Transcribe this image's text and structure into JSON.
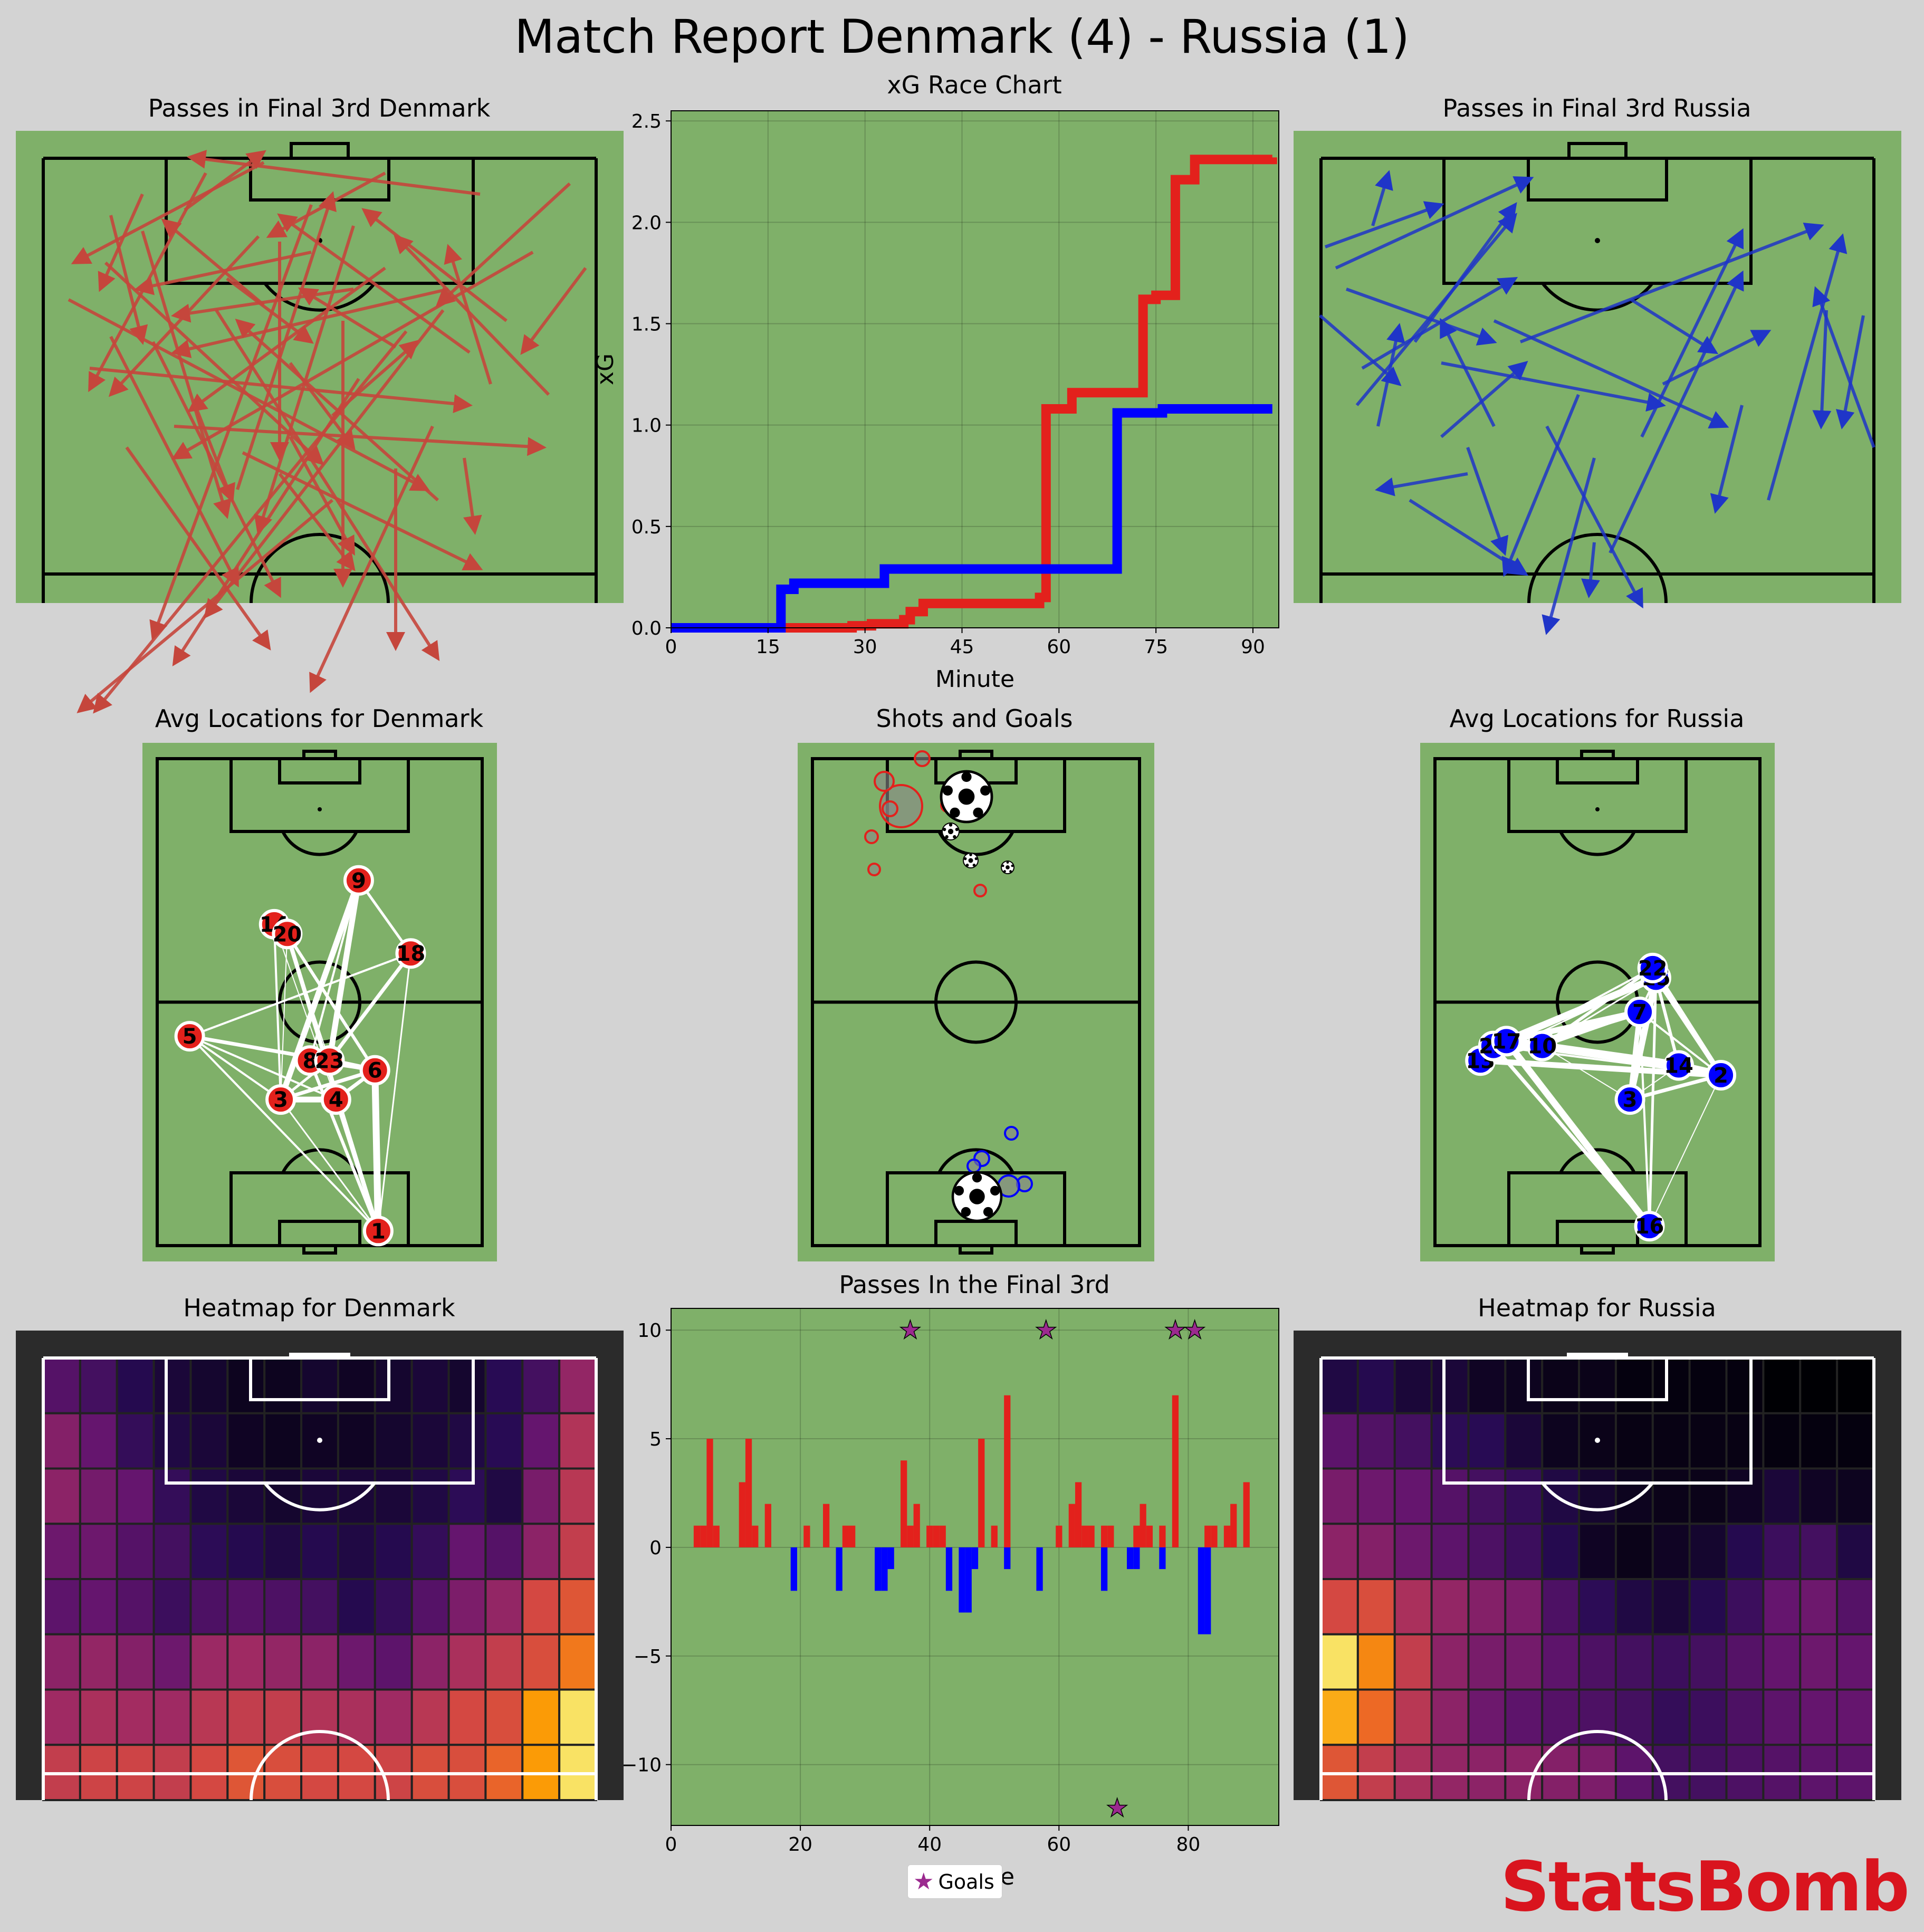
{
  "title": "Match Report Denmark (4) - Russia (1)",
  "brand": "StatsBomb",
  "colors": {
    "denmark": "#e3211c",
    "russia": "#0000ff",
    "pitch": "#7fb069",
    "background": "#d3d3d3",
    "goal_star": "#9b2a8f"
  },
  "panels": {
    "passes_dk_title": "Passes in Final 3rd Denmark",
    "xg_title": "xG Race Chart",
    "passes_ru_title": "Passes in Final 3rd Russia",
    "avg_dk_title": "Avg Locations for Denmark",
    "shots_title": "Shots and Goals",
    "avg_ru_title": "Avg Locations for Russia",
    "heat_dk_title": "Heatmap for Denmark",
    "final3rd_title": "Passes In the Final 3rd",
    "heat_ru_title": "Heatmap for Russia"
  },
  "legend": {
    "goals": "Goals"
  },
  "chart_data": [
    {
      "type": "line",
      "title": "xG Race Chart",
      "xlabel": "Minute",
      "ylabel": "xG",
      "xlim": [
        0,
        94
      ],
      "ylim": [
        0,
        2.55
      ],
      "xticks": [
        0,
        15,
        30,
        45,
        60,
        75,
        90
      ],
      "yticks": [
        0.0,
        0.5,
        1.0,
        1.5,
        2.0,
        2.5
      ],
      "grid": true,
      "step": true,
      "series": [
        {
          "team": "Denmark",
          "color": "#e3211c",
          "points": [
            [
              19,
              0
            ],
            [
              28,
              0.01
            ],
            [
              31,
              0.02
            ],
            [
              36,
              0.04
            ],
            [
              37,
              0.08
            ],
            [
              39,
              0.12
            ],
            [
              57,
              0.15
            ],
            [
              58,
              1.08
            ],
            [
              62,
              1.16
            ],
            [
              73,
              1.62
            ],
            [
              75,
              1.64
            ],
            [
              78,
              2.21
            ],
            [
              81,
              2.31
            ],
            [
              93,
              2.32
            ]
          ]
        },
        {
          "team": "Russia",
          "color": "#0000ff",
          "points": [
            [
              0,
              0
            ],
            [
              17,
              0.19
            ],
            [
              19,
              0.22
            ],
            [
              33,
              0.29
            ],
            [
              69,
              0.29
            ],
            [
              69,
              1.06
            ],
            [
              76,
              1.08
            ],
            [
              93,
              1.08
            ]
          ]
        }
      ]
    },
    {
      "type": "bar",
      "title": "Passes In the Final 3rd",
      "xlabel": "Minute",
      "xlim": [
        0,
        94
      ],
      "ylim": [
        -12.8,
        11
      ],
      "xticks": [
        0,
        20,
        40,
        60,
        80
      ],
      "yticks": [
        10,
        5,
        0,
        -5,
        -10
      ],
      "ytick_labels": [
        "10",
        "5",
        "0",
        "−5",
        "−10"
      ],
      "grid": true,
      "series": [
        {
          "team": "Denmark",
          "color": "#e3211c",
          "minutes": [
            4,
            5,
            6,
            7,
            11,
            12,
            13,
            15,
            21,
            24,
            27,
            28,
            36,
            37,
            38,
            40,
            41,
            42,
            48,
            50,
            52,
            60,
            62,
            63,
            64,
            65,
            67,
            68,
            72,
            73,
            74,
            76,
            78,
            83,
            84,
            86,
            87,
            89
          ],
          "values": [
            1,
            1,
            5,
            1,
            3,
            5,
            1,
            2,
            1,
            2,
            1,
            1,
            4,
            1,
            2,
            1,
            1,
            1,
            5,
            1,
            7,
            1,
            2,
            3,
            1,
            1,
            1,
            1,
            1,
            2,
            1,
            1,
            7,
            1,
            1,
            1,
            2,
            3
          ]
        },
        {
          "team": "Russia",
          "color": "#0000ff",
          "minutes": [
            19,
            26,
            32,
            33,
            34,
            43,
            45,
            46,
            47,
            52,
            57,
            67,
            71,
            72,
            76,
            82,
            83
          ],
          "values": [
            -2,
            -2,
            -2,
            -2,
            -1,
            -2,
            -3,
            -3,
            -1,
            -1,
            -2,
            -2,
            -1,
            -1,
            -1,
            -4,
            -4
          ]
        },
        {
          "name": "Goals",
          "type": "scatter",
          "marker": "star",
          "color": "#9b2a8f",
          "points": [
            [
              37,
              10
            ],
            [
              58,
              10
            ],
            [
              78,
              10
            ],
            [
              81,
              10
            ],
            [
              69,
              -12
            ]
          ]
        }
      ]
    },
    {
      "type": "heatmap",
      "title": "Heatmap for Denmark",
      "rows": 8,
      "cols": 15,
      "values": [
        [
          0.26,
          0.22,
          0.14,
          0.1,
          0.08,
          0.05,
          0.05,
          0.08,
          0.06,
          0.08,
          0.1,
          0.08,
          0.15,
          0.22,
          0.42
        ],
        [
          0.38,
          0.3,
          0.18,
          0.12,
          0.1,
          0.06,
          0.05,
          0.06,
          0.06,
          0.08,
          0.1,
          0.12,
          0.15,
          0.3,
          0.5
        ],
        [
          0.4,
          0.34,
          0.3,
          0.18,
          0.12,
          0.1,
          0.08,
          0.1,
          0.1,
          0.1,
          0.12,
          0.16,
          0.12,
          0.35,
          0.52
        ],
        [
          0.32,
          0.32,
          0.26,
          0.22,
          0.16,
          0.14,
          0.12,
          0.14,
          0.12,
          0.14,
          0.18,
          0.3,
          0.26,
          0.4,
          0.55
        ],
        [
          0.28,
          0.3,
          0.26,
          0.2,
          0.24,
          0.26,
          0.24,
          0.22,
          0.14,
          0.18,
          0.26,
          0.36,
          0.42,
          0.6,
          0.65
        ],
        [
          0.4,
          0.42,
          0.38,
          0.32,
          0.44,
          0.45,
          0.42,
          0.4,
          0.32,
          0.28,
          0.4,
          0.48,
          0.55,
          0.62,
          0.75
        ],
        [
          0.45,
          0.48,
          0.46,
          0.45,
          0.52,
          0.55,
          0.55,
          0.5,
          0.48,
          0.45,
          0.52,
          0.6,
          0.62,
          0.82,
          0.95
        ],
        [
          0.55,
          0.58,
          0.58,
          0.55,
          0.6,
          0.65,
          0.62,
          0.6,
          0.6,
          0.58,
          0.62,
          0.62,
          0.7,
          0.82,
          0.95
        ]
      ]
    },
    {
      "type": "heatmap",
      "title": "Heatmap for Russia",
      "rows": 8,
      "cols": 15,
      "values": [
        [
          0.12,
          0.14,
          0.1,
          0.1,
          0.06,
          0.05,
          0.04,
          0.04,
          0.02,
          0.02,
          0.02,
          0.02,
          0.0,
          0.0,
          0.0
        ],
        [
          0.28,
          0.25,
          0.22,
          0.16,
          0.15,
          0.1,
          0.05,
          0.04,
          0.03,
          0.03,
          0.03,
          0.03,
          0.02,
          0.02,
          0.02
        ],
        [
          0.35,
          0.32,
          0.3,
          0.26,
          0.22,
          0.18,
          0.12,
          0.08,
          0.05,
          0.04,
          0.04,
          0.06,
          0.1,
          0.06,
          0.05
        ],
        [
          0.4,
          0.38,
          0.32,
          0.28,
          0.24,
          0.2,
          0.14,
          0.06,
          0.04,
          0.06,
          0.08,
          0.14,
          0.2,
          0.22,
          0.12
        ],
        [
          0.6,
          0.62,
          0.48,
          0.42,
          0.38,
          0.36,
          0.24,
          0.16,
          0.12,
          0.1,
          0.14,
          0.2,
          0.3,
          0.32,
          0.26
        ],
        [
          0.95,
          0.78,
          0.55,
          0.4,
          0.35,
          0.34,
          0.28,
          0.24,
          0.22,
          0.2,
          0.22,
          0.26,
          0.3,
          0.32,
          0.3
        ],
        [
          0.85,
          0.72,
          0.52,
          0.4,
          0.32,
          0.28,
          0.26,
          0.24,
          0.22,
          0.18,
          0.2,
          0.24,
          0.28,
          0.3,
          0.3
        ],
        [
          0.65,
          0.55,
          0.48,
          0.42,
          0.4,
          0.4,
          0.38,
          0.36,
          0.28,
          0.22,
          0.22,
          0.24,
          0.26,
          0.28,
          0.28
        ]
      ]
    }
  ],
  "avg_locations": {
    "denmark": [
      {
        "n": "1",
        "x": 68,
        "y": 3
      },
      {
        "n": "3",
        "x": 38,
        "y": 30
      },
      {
        "n": "4",
        "x": 55,
        "y": 30
      },
      {
        "n": "6",
        "x": 67,
        "y": 36
      },
      {
        "n": "8",
        "x": 47,
        "y": 38
      },
      {
        "n": "23",
        "x": 53,
        "y": 38
      },
      {
        "n": "5",
        "x": 10,
        "y": 43
      },
      {
        "n": "14",
        "x": 36,
        "y": 66
      },
      {
        "n": "20",
        "x": 40,
        "y": 64
      },
      {
        "n": "18",
        "x": 78,
        "y": 60
      },
      {
        "n": "9",
        "x": 62,
        "y": 75
      }
    ],
    "russia": [
      {
        "n": "16",
        "x": 66,
        "y": 4
      },
      {
        "n": "3",
        "x": 60,
        "y": 30
      },
      {
        "n": "14",
        "x": 75,
        "y": 37
      },
      {
        "n": "2",
        "x": 88,
        "y": 35
      },
      {
        "n": "13",
        "x": 14,
        "y": 38
      },
      {
        "n": "23",
        "x": 18,
        "y": 41
      },
      {
        "n": "17",
        "x": 22,
        "y": 42
      },
      {
        "n": "10",
        "x": 33,
        "y": 41
      },
      {
        "n": "7",
        "x": 63,
        "y": 48
      },
      {
        "n": "15",
        "x": 68,
        "y": 55
      },
      {
        "n": "22",
        "x": 67,
        "y": 57
      }
    ]
  }
}
